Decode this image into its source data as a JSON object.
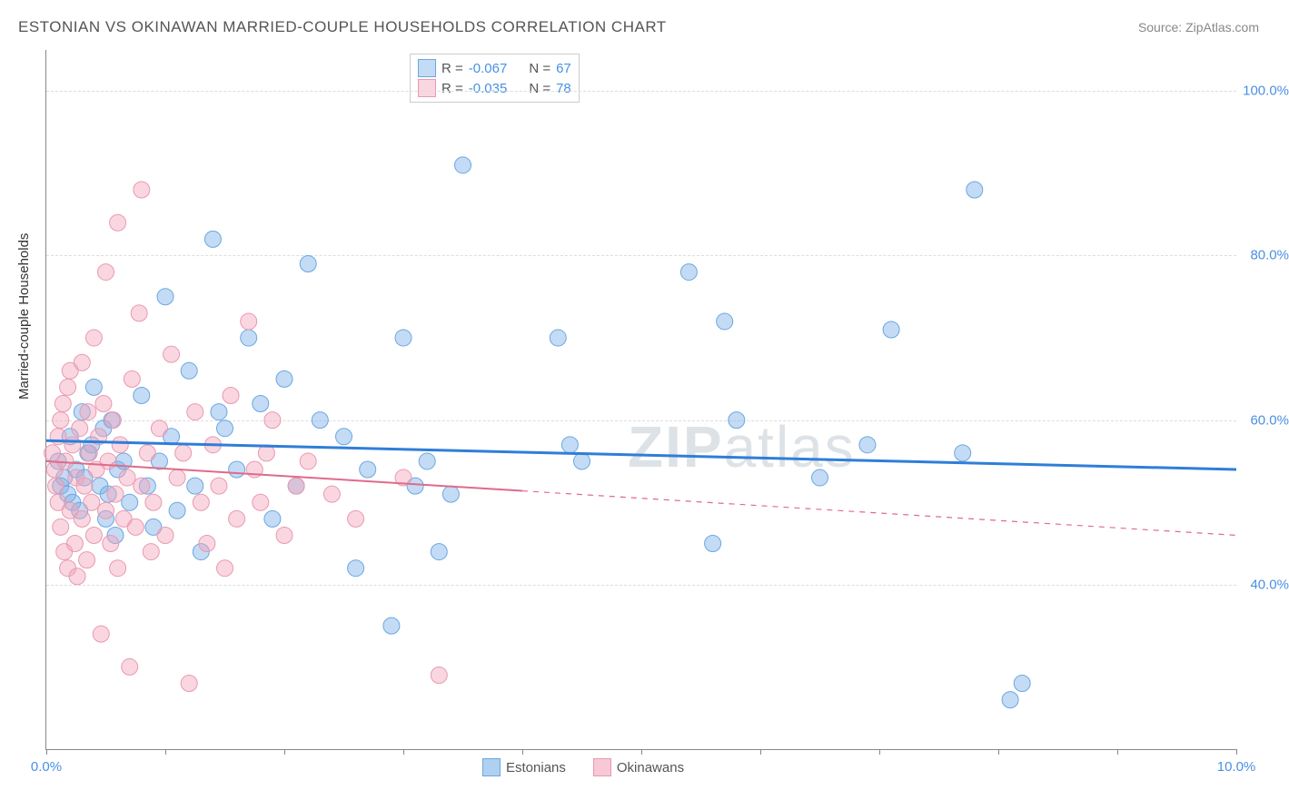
{
  "title": "ESTONIAN VS OKINAWAN MARRIED-COUPLE HOUSEHOLDS CORRELATION CHART",
  "source": "Source: ZipAtlas.com",
  "watermark_a": "ZIP",
  "watermark_b": "atlas",
  "y_axis_title": "Married-couple Households",
  "chart": {
    "type": "scatter",
    "xlim": [
      0,
      10
    ],
    "ylim": [
      20,
      105
    ],
    "y_ticks": [
      40,
      60,
      80,
      100
    ],
    "y_tick_labels": [
      "40.0%",
      "60.0%",
      "80.0%",
      "100.0%"
    ],
    "x_ticks": [
      0,
      1,
      2,
      3,
      4,
      5,
      6,
      7,
      8,
      9,
      10
    ],
    "x_tick_labels": {
      "0": "0.0%",
      "10": "10.0%"
    },
    "grid_color": "#dddddd",
    "axis_color": "#888888",
    "label_color": "#4a90e2"
  },
  "series": [
    {
      "name": "Estonians",
      "color_fill": "rgba(124,176,232,0.45)",
      "color_stroke": "#6aa8e0",
      "marker_radius": 9,
      "R": "-0.067",
      "N": "67",
      "trend": {
        "x1": 0,
        "y1": 57.5,
        "x2": 10,
        "y2": 54.0,
        "color": "#2f7ed8",
        "width": 3,
        "solid_until_x": 10
      },
      "points": [
        [
          0.1,
          55
        ],
        [
          0.12,
          52
        ],
        [
          0.15,
          53
        ],
        [
          0.18,
          51
        ],
        [
          0.2,
          58
        ],
        [
          0.22,
          50
        ],
        [
          0.25,
          54
        ],
        [
          0.28,
          49
        ],
        [
          0.3,
          61
        ],
        [
          0.35,
          56
        ],
        [
          0.4,
          64
        ],
        [
          0.45,
          52
        ],
        [
          0.5,
          48
        ],
        [
          0.55,
          60
        ],
        [
          0.6,
          54
        ],
        [
          0.65,
          55
        ],
        [
          0.7,
          50
        ],
        [
          0.8,
          63
        ],
        [
          0.85,
          52
        ],
        [
          0.9,
          47
        ],
        [
          1.0,
          75
        ],
        [
          1.1,
          49
        ],
        [
          1.2,
          66
        ],
        [
          1.3,
          44
        ],
        [
          1.4,
          82
        ],
        [
          1.5,
          59
        ],
        [
          1.6,
          54
        ],
        [
          1.7,
          70
        ],
        [
          1.8,
          62
        ],
        [
          1.9,
          48
        ],
        [
          2.0,
          65
        ],
        [
          2.1,
          52
        ],
        [
          2.2,
          79
        ],
        [
          2.3,
          60
        ],
        [
          2.5,
          58
        ],
        [
          2.6,
          42
        ],
        [
          2.7,
          54
        ],
        [
          2.9,
          35
        ],
        [
          3.0,
          70
        ],
        [
          3.1,
          52
        ],
        [
          3.2,
          55
        ],
        [
          3.3,
          44
        ],
        [
          3.5,
          91
        ],
        [
          4.3,
          70
        ],
        [
          4.4,
          57
        ],
        [
          4.5,
          55
        ],
        [
          5.4,
          78
        ],
        [
          5.6,
          45
        ],
        [
          5.7,
          72
        ],
        [
          5.8,
          60
        ],
        [
          6.5,
          53
        ],
        [
          6.9,
          57
        ],
        [
          7.1,
          71
        ],
        [
          7.7,
          56
        ],
        [
          7.8,
          88
        ],
        [
          8.1,
          26
        ],
        [
          8.2,
          28
        ],
        [
          0.95,
          55
        ],
        [
          1.05,
          58
        ],
        [
          1.25,
          52
        ],
        [
          1.45,
          61
        ],
        [
          3.4,
          51
        ],
        [
          0.32,
          53
        ],
        [
          0.38,
          57
        ],
        [
          0.48,
          59
        ],
        [
          0.52,
          51
        ],
        [
          0.58,
          46
        ]
      ]
    },
    {
      "name": "Okinawans",
      "color_fill": "rgba(244,164,186,0.45)",
      "color_stroke": "#e89ab0",
      "marker_radius": 9,
      "R": "-0.035",
      "N": "78",
      "trend": {
        "x1": 0,
        "y1": 55.0,
        "x2": 10,
        "y2": 46.0,
        "color": "#e06a8a",
        "width": 2,
        "solid_until_x": 4.0
      },
      "points": [
        [
          0.05,
          56
        ],
        [
          0.07,
          54
        ],
        [
          0.08,
          52
        ],
        [
          0.1,
          58
        ],
        [
          0.1,
          50
        ],
        [
          0.12,
          47
        ],
        [
          0.12,
          60
        ],
        [
          0.14,
          62
        ],
        [
          0.15,
          44
        ],
        [
          0.16,
          55
        ],
        [
          0.18,
          42
        ],
        [
          0.18,
          64
        ],
        [
          0.2,
          49
        ],
        [
          0.2,
          66
        ],
        [
          0.22,
          57
        ],
        [
          0.24,
          45
        ],
        [
          0.25,
          53
        ],
        [
          0.26,
          41
        ],
        [
          0.28,
          59
        ],
        [
          0.3,
          48
        ],
        [
          0.3,
          67
        ],
        [
          0.32,
          52
        ],
        [
          0.34,
          43
        ],
        [
          0.35,
          61
        ],
        [
          0.36,
          56
        ],
        [
          0.38,
          50
        ],
        [
          0.4,
          46
        ],
        [
          0.4,
          70
        ],
        [
          0.42,
          54
        ],
        [
          0.44,
          58
        ],
        [
          0.46,
          34
        ],
        [
          0.48,
          62
        ],
        [
          0.5,
          78
        ],
        [
          0.5,
          49
        ],
        [
          0.52,
          55
        ],
        [
          0.54,
          45
        ],
        [
          0.56,
          60
        ],
        [
          0.58,
          51
        ],
        [
          0.6,
          84
        ],
        [
          0.6,
          42
        ],
        [
          0.62,
          57
        ],
        [
          0.65,
          48
        ],
        [
          0.68,
          53
        ],
        [
          0.7,
          30
        ],
        [
          0.72,
          65
        ],
        [
          0.75,
          47
        ],
        [
          0.78,
          73
        ],
        [
          0.8,
          88
        ],
        [
          0.8,
          52
        ],
        [
          0.85,
          56
        ],
        [
          0.88,
          44
        ],
        [
          0.9,
          50
        ],
        [
          0.95,
          59
        ],
        [
          1.0,
          46
        ],
        [
          1.05,
          68
        ],
        [
          1.1,
          53
        ],
        [
          1.15,
          56
        ],
        [
          1.2,
          28
        ],
        [
          1.25,
          61
        ],
        [
          1.3,
          50
        ],
        [
          1.35,
          45
        ],
        [
          1.4,
          57
        ],
        [
          1.45,
          52
        ],
        [
          1.5,
          42
        ],
        [
          1.55,
          63
        ],
        [
          1.6,
          48
        ],
        [
          1.7,
          72
        ],
        [
          1.75,
          54
        ],
        [
          1.8,
          50
        ],
        [
          1.85,
          56
        ],
        [
          1.9,
          60
        ],
        [
          2.0,
          46
        ],
        [
          2.1,
          52
        ],
        [
          2.2,
          55
        ],
        [
          2.4,
          51
        ],
        [
          2.6,
          48
        ],
        [
          3.0,
          53
        ],
        [
          3.3,
          29
        ]
      ]
    }
  ],
  "legend_top": {
    "R_label": "R =",
    "N_label": "N ="
  },
  "legend_bottom": [
    {
      "label": "Estonians",
      "fill": "rgba(124,176,232,0.6)",
      "stroke": "#6aa8e0"
    },
    {
      "label": "Okinawans",
      "fill": "rgba(244,164,186,0.6)",
      "stroke": "#e89ab0"
    }
  ]
}
